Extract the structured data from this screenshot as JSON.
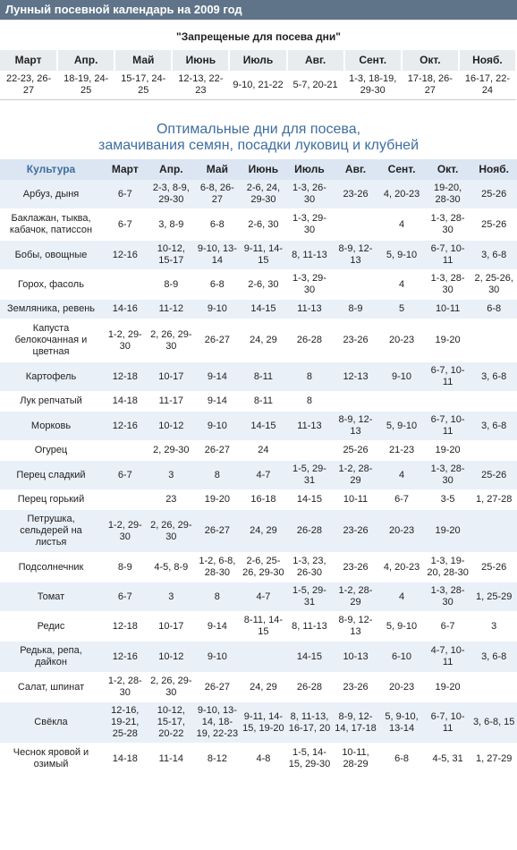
{
  "header": {
    "title": "Лунный посевной календарь на 2009 год"
  },
  "forbidden": {
    "caption": "\"Запрещеные для посева дни\"",
    "columns": [
      "Март",
      "Апр.",
      "Май",
      "Июнь",
      "Июль",
      "Авг.",
      "Сент.",
      "Окт.",
      "Нояб."
    ],
    "row": [
      "22-23, 26-27",
      "18-19, 24-25",
      "15-17, 24-25",
      "12-13, 22-23",
      "9-10, 21-22",
      "5-7, 20-21",
      "1-3, 18-19, 29-30",
      "17-18, 26-27",
      "16-17, 22-24"
    ]
  },
  "optimal": {
    "title": [
      "Оптимальные дни для посева,",
      "замачивания семян, посадки луковиц и клубней"
    ],
    "columns": [
      "Культура",
      "Март",
      "Апр.",
      "Май",
      "Июнь",
      "Июль",
      "Авг.",
      "Сент.",
      "Окт.",
      "Нояб."
    ],
    "rows": [
      [
        "Арбуз, дыня",
        "6-7",
        "2-3, 8-9, 29-30",
        "6-8, 26-27",
        "2-6, 24, 29-30",
        "1-3, 26-30",
        "23-26",
        "4, 20-23",
        "19-20, 28-30",
        "25-26"
      ],
      [
        "Баклажан, тыква, кабачок, патиссон",
        "6-7",
        "3, 8-9",
        "6-8",
        "2-6, 30",
        "1-3, 29-30",
        null,
        "4",
        "1-3, 28-30",
        "25-26"
      ],
      [
        "Бобы, овощные",
        "12-16",
        "10-12, 15-17",
        "9-10, 13-14",
        "9-11, 14-15",
        "8, 11-13",
        "8-9, 12-13",
        "5, 9-10",
        "6-7, 10-11",
        "3, 6-8"
      ],
      [
        "Горох, фасоль",
        null,
        "8-9",
        "6-8",
        "2-6, 30",
        "1-3, 29-30",
        null,
        "4",
        "1-3, 28-30",
        "2, 25-26, 30"
      ],
      [
        "Земляника, ревень",
        "14-16",
        "11-12",
        "9-10",
        "14-15",
        "11-13",
        "8-9",
        "5",
        "10-11",
        "6-8"
      ],
      [
        "Капуста белокочанная и цветная",
        "1-2, 29-30",
        "2, 26, 29-30",
        "26-27",
        "24, 29",
        "26-28",
        "23-26",
        "20-23",
        "19-20",
        null
      ],
      [
        "Картофель",
        "12-18",
        "10-17",
        "9-14",
        "8-11",
        "8",
        "12-13",
        "9-10",
        "6-7, 10-11",
        "3, 6-8"
      ],
      [
        "Лук репчатый",
        "14-18",
        "11-17",
        "9-14",
        "8-11",
        "8",
        null,
        null,
        null,
        null
      ],
      [
        "Морковь",
        "12-16",
        "10-12",
        "9-10",
        "14-15",
        "11-13",
        "8-9, 12-13",
        "5, 9-10",
        "6-7, 10-11",
        "3, 6-8"
      ],
      [
        "Огурец",
        null,
        "2, 29-30",
        "26-27",
        "24",
        null,
        "25-26",
        "21-23",
        "19-20",
        null
      ],
      [
        "Перец сладкий",
        "6-7",
        "3",
        "8",
        "4-7",
        "1-5, 29-31",
        "1-2, 28-29",
        "4",
        "1-3, 28-30",
        "25-26"
      ],
      [
        "Перец горький",
        null,
        "23",
        "19-20",
        "16-18",
        "14-15",
        "10-11",
        "6-7",
        "3-5",
        "1, 27-28"
      ],
      [
        "Петрушка, сельдерей на листья",
        "1-2, 29-30",
        "2, 26, 29-30",
        "26-27",
        "24, 29",
        "26-28",
        "23-26",
        "20-23",
        "19-20",
        null
      ],
      [
        "Подсолнечник",
        "8-9",
        "4-5, 8-9",
        "1-2, 6-8, 28-30",
        "2-6, 25-26, 29-30",
        "1-3, 23, 26-30",
        "23-26",
        "4, 20-23",
        "1-3, 19-20, 28-30",
        "25-26"
      ],
      [
        "Томат",
        "6-7",
        "3",
        "8",
        "4-7",
        "1-5, 29-31",
        "1-2, 28-29",
        "4",
        "1-3, 28-30",
        "1, 25-29"
      ],
      [
        "Редис",
        "12-18",
        "10-17",
        "9-14",
        "8-11, 14-15",
        "8, 11-13",
        "8-9, 12-13",
        "5, 9-10",
        "6-7",
        "3"
      ],
      [
        "Редька, репа, дайкон",
        "12-16",
        "10-12",
        "9-10",
        null,
        "14-15",
        "10-13",
        "6-10",
        "4-7, 10-11",
        "3, 6-8"
      ],
      [
        "Салат, шпинат",
        "1-2, 28-30",
        "2, 26, 29-30",
        "26-27",
        "24, 29",
        "26-28",
        "23-26",
        "20-23",
        "19-20",
        null
      ],
      [
        "Свёкла",
        "12-16, 19-21, 25-28",
        "10-12, 15-17, 20-22",
        "9-10, 13-14, 18-19, 22-23",
        "9-11, 14-15, 19-20",
        "8, 11-13, 16-17, 20",
        "8-9, 12-14, 17-18",
        "5, 9-10, 13-14",
        "6-7, 10-11",
        "3, 6-8, 15"
      ],
      [
        "Чеснок яровой и озимый",
        "14-18",
        "11-14",
        "8-12",
        "4-8",
        "1-5, 14-15, 29-30",
        "10-11, 28-29",
        "6-8",
        "4-5, 31",
        "1, 27-29"
      ]
    ]
  }
}
